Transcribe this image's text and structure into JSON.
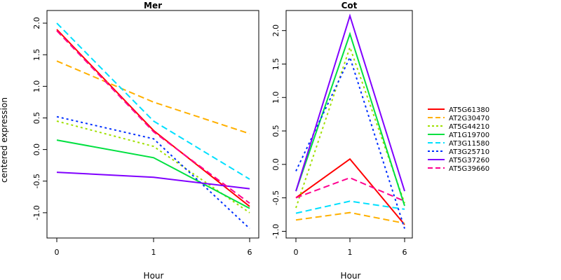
{
  "chart_data": {
    "type": "line",
    "ylabel": "centered expression",
    "xlabel": "Hour",
    "x": [
      "0",
      "1",
      "6"
    ],
    "series_meta": [
      {
        "name": "AT5G61380",
        "color": "#ff0000",
        "dash": "solid"
      },
      {
        "name": "AT2G30470",
        "color": "#ffb000",
        "dash": "long"
      },
      {
        "name": "AT5G44210",
        "color": "#a0e000",
        "dash": "dot"
      },
      {
        "name": "AT1G19700",
        "color": "#00e040",
        "dash": "solid"
      },
      {
        "name": "AT3G11580",
        "color": "#00e0ff",
        "dash": "long"
      },
      {
        "name": "AT3G25710",
        "color": "#0030ff",
        "dash": "dot"
      },
      {
        "name": "AT5G37260",
        "color": "#8000ff",
        "dash": "solid"
      },
      {
        "name": "AT5G39660",
        "color": "#ff0090",
        "dash": "long"
      }
    ],
    "legend_position": "right",
    "panels": [
      {
        "title": "Mer",
        "ylim": [
          -1.4,
          2.2
        ],
        "yticks": [
          "-1.0",
          "-0.5",
          "0.0",
          "0.5",
          "1.0",
          "1.5",
          "2.0"
        ],
        "series": [
          {
            "name": "AT5G61380",
            "values": [
              1.9,
              0.3,
              -0.9
            ]
          },
          {
            "name": "AT2G30470",
            "values": [
              1.4,
              0.75,
              0.25
            ]
          },
          {
            "name": "AT5G44210",
            "values": [
              0.45,
              0.05,
              -1.0
            ]
          },
          {
            "name": "AT1G19700",
            "values": [
              0.15,
              -0.13,
              -0.93
            ]
          },
          {
            "name": "AT3G11580",
            "values": [
              2.0,
              0.45,
              -0.47
            ]
          },
          {
            "name": "AT3G25710",
            "values": [
              0.52,
              0.17,
              -1.25
            ]
          },
          {
            "name": "AT5G37260",
            "values": [
              -0.36,
              -0.44,
              -0.62
            ]
          },
          {
            "name": "AT5G39660",
            "values": [
              1.88,
              0.28,
              -0.85
            ]
          }
        ]
      },
      {
        "title": "Cot",
        "ylim": [
          -1.1,
          2.3
        ],
        "yticks": [
          "-1.0",
          "-0.5",
          "0.0",
          "0.5",
          "1.0",
          "1.5",
          "2.0"
        ],
        "series": [
          {
            "name": "AT5G61380",
            "values": [
              -0.5,
              0.08,
              -0.9
            ]
          },
          {
            "name": "AT2G30470",
            "values": [
              -0.83,
              -0.72,
              -0.88
            ]
          },
          {
            "name": "AT5G44210",
            "values": [
              -0.65,
              1.75,
              -0.58
            ]
          },
          {
            "name": "AT1G19700",
            "values": [
              -0.4,
              1.95,
              -0.62
            ]
          },
          {
            "name": "AT3G11580",
            "values": [
              -0.73,
              -0.55,
              -0.67
            ]
          },
          {
            "name": "AT3G25710",
            "values": [
              -0.1,
              1.6,
              -0.96
            ]
          },
          {
            "name": "AT5G37260",
            "values": [
              -0.4,
              2.22,
              -0.4
            ]
          },
          {
            "name": "AT5G39660",
            "values": [
              -0.5,
              -0.2,
              -0.55
            ]
          }
        ]
      }
    ]
  }
}
